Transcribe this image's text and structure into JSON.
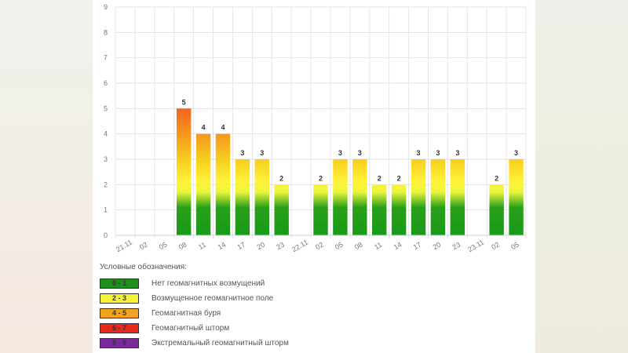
{
  "chart_data": {
    "type": "bar",
    "categories": [
      "21.11",
      "02",
      "05",
      "08",
      "11",
      "14",
      "17",
      "20",
      "23",
      "22.11",
      "02",
      "05",
      "08",
      "11",
      "14",
      "17",
      "20",
      "23",
      "23.11",
      "02",
      "05"
    ],
    "values": [
      null,
      null,
      null,
      5,
      4,
      4,
      3,
      3,
      2,
      null,
      2,
      3,
      3,
      2,
      2,
      3,
      3,
      3,
      null,
      2,
      3
    ],
    "yticks": [
      "0",
      "1",
      "2",
      "3",
      "4",
      "5",
      "6",
      "7",
      "8",
      "9"
    ],
    "ylim": [
      0,
      9
    ],
    "grid": true,
    "title": "",
    "xlabel": "",
    "ylabel": ""
  },
  "legend": {
    "title": "Условные обозначения:",
    "items": [
      {
        "range": "0 - 1",
        "label": "Нет геомагнитных возмущений",
        "color": "#1e8f1e"
      },
      {
        "range": "2 - 3",
        "label": "Возмущенное геомагнитное поле",
        "color": "#f5f23a"
      },
      {
        "range": "4 - 5",
        "label": "Геомагнитная буря",
        "color": "#f2a21e"
      },
      {
        "range": "6 - 7",
        "label": "Геомагнитный шторм",
        "color": "#e8291e"
      },
      {
        "range": "8 - 9",
        "label": "Экстремальный геомагнитный шторм",
        "color": "#7b2a9c"
      }
    ]
  }
}
